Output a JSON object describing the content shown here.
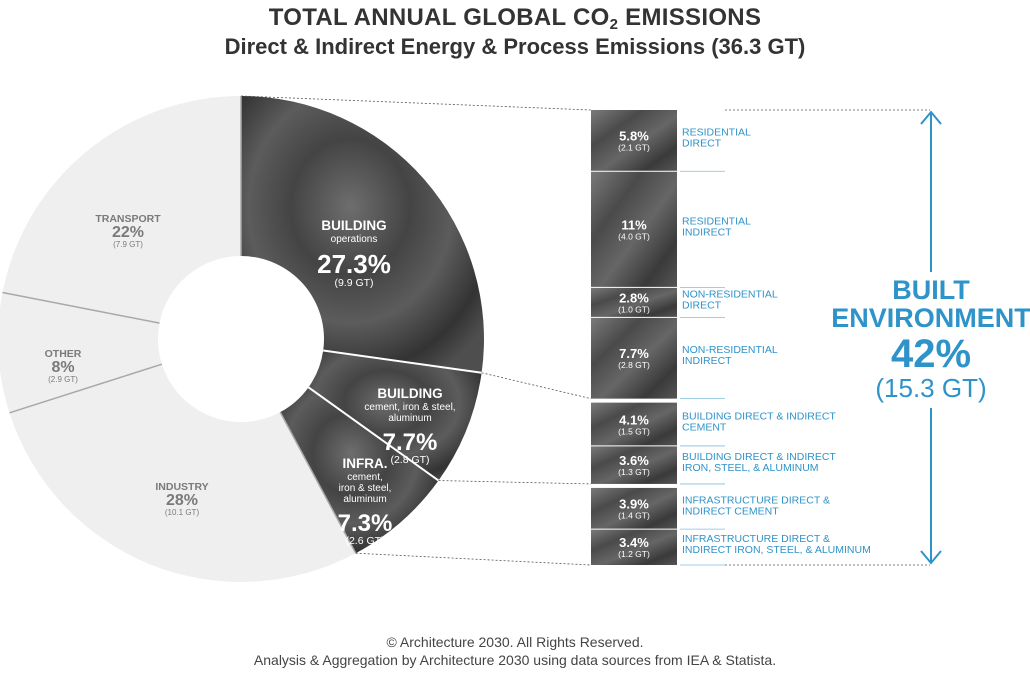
{
  "title_main": "TOTAL ANNUAL GLOBAL CO",
  "title_sub": "2",
  "title_end": " EMISSIONS",
  "subtitle": "Direct & Indirect Energy & Process Emissions (36.3 GT)",
  "chart_data": {
    "type": "pie",
    "donut_segments": [
      {
        "name": "BUILDING",
        "detail": [
          "operations"
        ],
        "pct": 27.3,
        "pct_label": "27.3%",
        "gt_label": "(9.9 GT)",
        "style": "dark"
      },
      {
        "name": "BUILDING",
        "detail": [
          "cement, iron & steel,",
          "aluminum"
        ],
        "pct": 7.7,
        "pct_label": "7.7%",
        "gt_label": "(2.8 GT)",
        "style": "dark"
      },
      {
        "name": "INFRA.",
        "detail": [
          "cement,",
          "iron & steel,",
          "aluminum"
        ],
        "pct": 7.3,
        "pct_label": "7.3%",
        "gt_label": "(2.6 GT)",
        "style": "dark"
      },
      {
        "name": "INDUSTRY",
        "detail": [],
        "pct": 28,
        "pct_label": "28%",
        "gt_label": "(10.1 GT)",
        "style": "light"
      },
      {
        "name": "OTHER",
        "detail": [],
        "pct": 8,
        "pct_label": "8%",
        "gt_label": "(2.9 GT)",
        "style": "light"
      },
      {
        "name": "TRANSPORT",
        "detail": [],
        "pct": 22,
        "pct_label": "22%",
        "gt_label": "(7.9 GT)",
        "style": "light"
      }
    ],
    "breakdown": [
      {
        "pct": 5.8,
        "pct_label": "5.8%",
        "gt_label": "(2.1 GT)",
        "label": [
          "RESIDENTIAL",
          "DIRECT"
        ]
      },
      {
        "pct": 11,
        "pct_label": "11%",
        "gt_label": "(4.0 GT)",
        "label": [
          "RESIDENTIAL",
          "INDIRECT"
        ]
      },
      {
        "pct": 2.8,
        "pct_label": "2.8%",
        "gt_label": "(1.0 GT)",
        "label": [
          "NON-RESIDENTIAL",
          "DIRECT"
        ]
      },
      {
        "pct": 7.7,
        "pct_label": "7.7%",
        "gt_label": "(2.8 GT)",
        "label": [
          "NON-RESIDENTIAL",
          "INDIRECT"
        ]
      },
      {
        "pct": 4.1,
        "pct_label": "4.1%",
        "gt_label": "(1.5 GT)",
        "label": [
          "BUILDING DIRECT & INDIRECT",
          "CEMENT"
        ]
      },
      {
        "pct": 3.6,
        "pct_label": "3.6%",
        "gt_label": "(1.3 GT)",
        "label": [
          "BUILDING DIRECT & INDIRECT",
          "IRON, STEEL, & ALUMINUM"
        ]
      },
      {
        "pct": 3.9,
        "pct_label": "3.9%",
        "gt_label": "(1.4 GT)",
        "label": [
          "INFRASTRUCTURE DIRECT &",
          "INDIRECT CEMENT"
        ]
      },
      {
        "pct": 3.4,
        "pct_label": "3.4%",
        "gt_label": "(1.2 GT)",
        "label": [
          "INFRASTRUCTURE DIRECT &",
          "INDIRECT IRON, STEEL, & ALUMINUM"
        ]
      }
    ],
    "built_environment": {
      "line1": "BUILT",
      "line2": "ENVIRONMENT",
      "pct_label": "42%",
      "gt_label": "(15.3 GT)"
    }
  },
  "colors": {
    "dark": "#4a4a4a",
    "light": "#efefef",
    "accent": "#2e93c9",
    "divider": "#a8a8a8"
  },
  "footer": {
    "line1": "© Architecture 2030. All Rights Reserved.",
    "line2": "Analysis & Aggregation by Architecture 2030 using data sources from IEA & Statista."
  }
}
